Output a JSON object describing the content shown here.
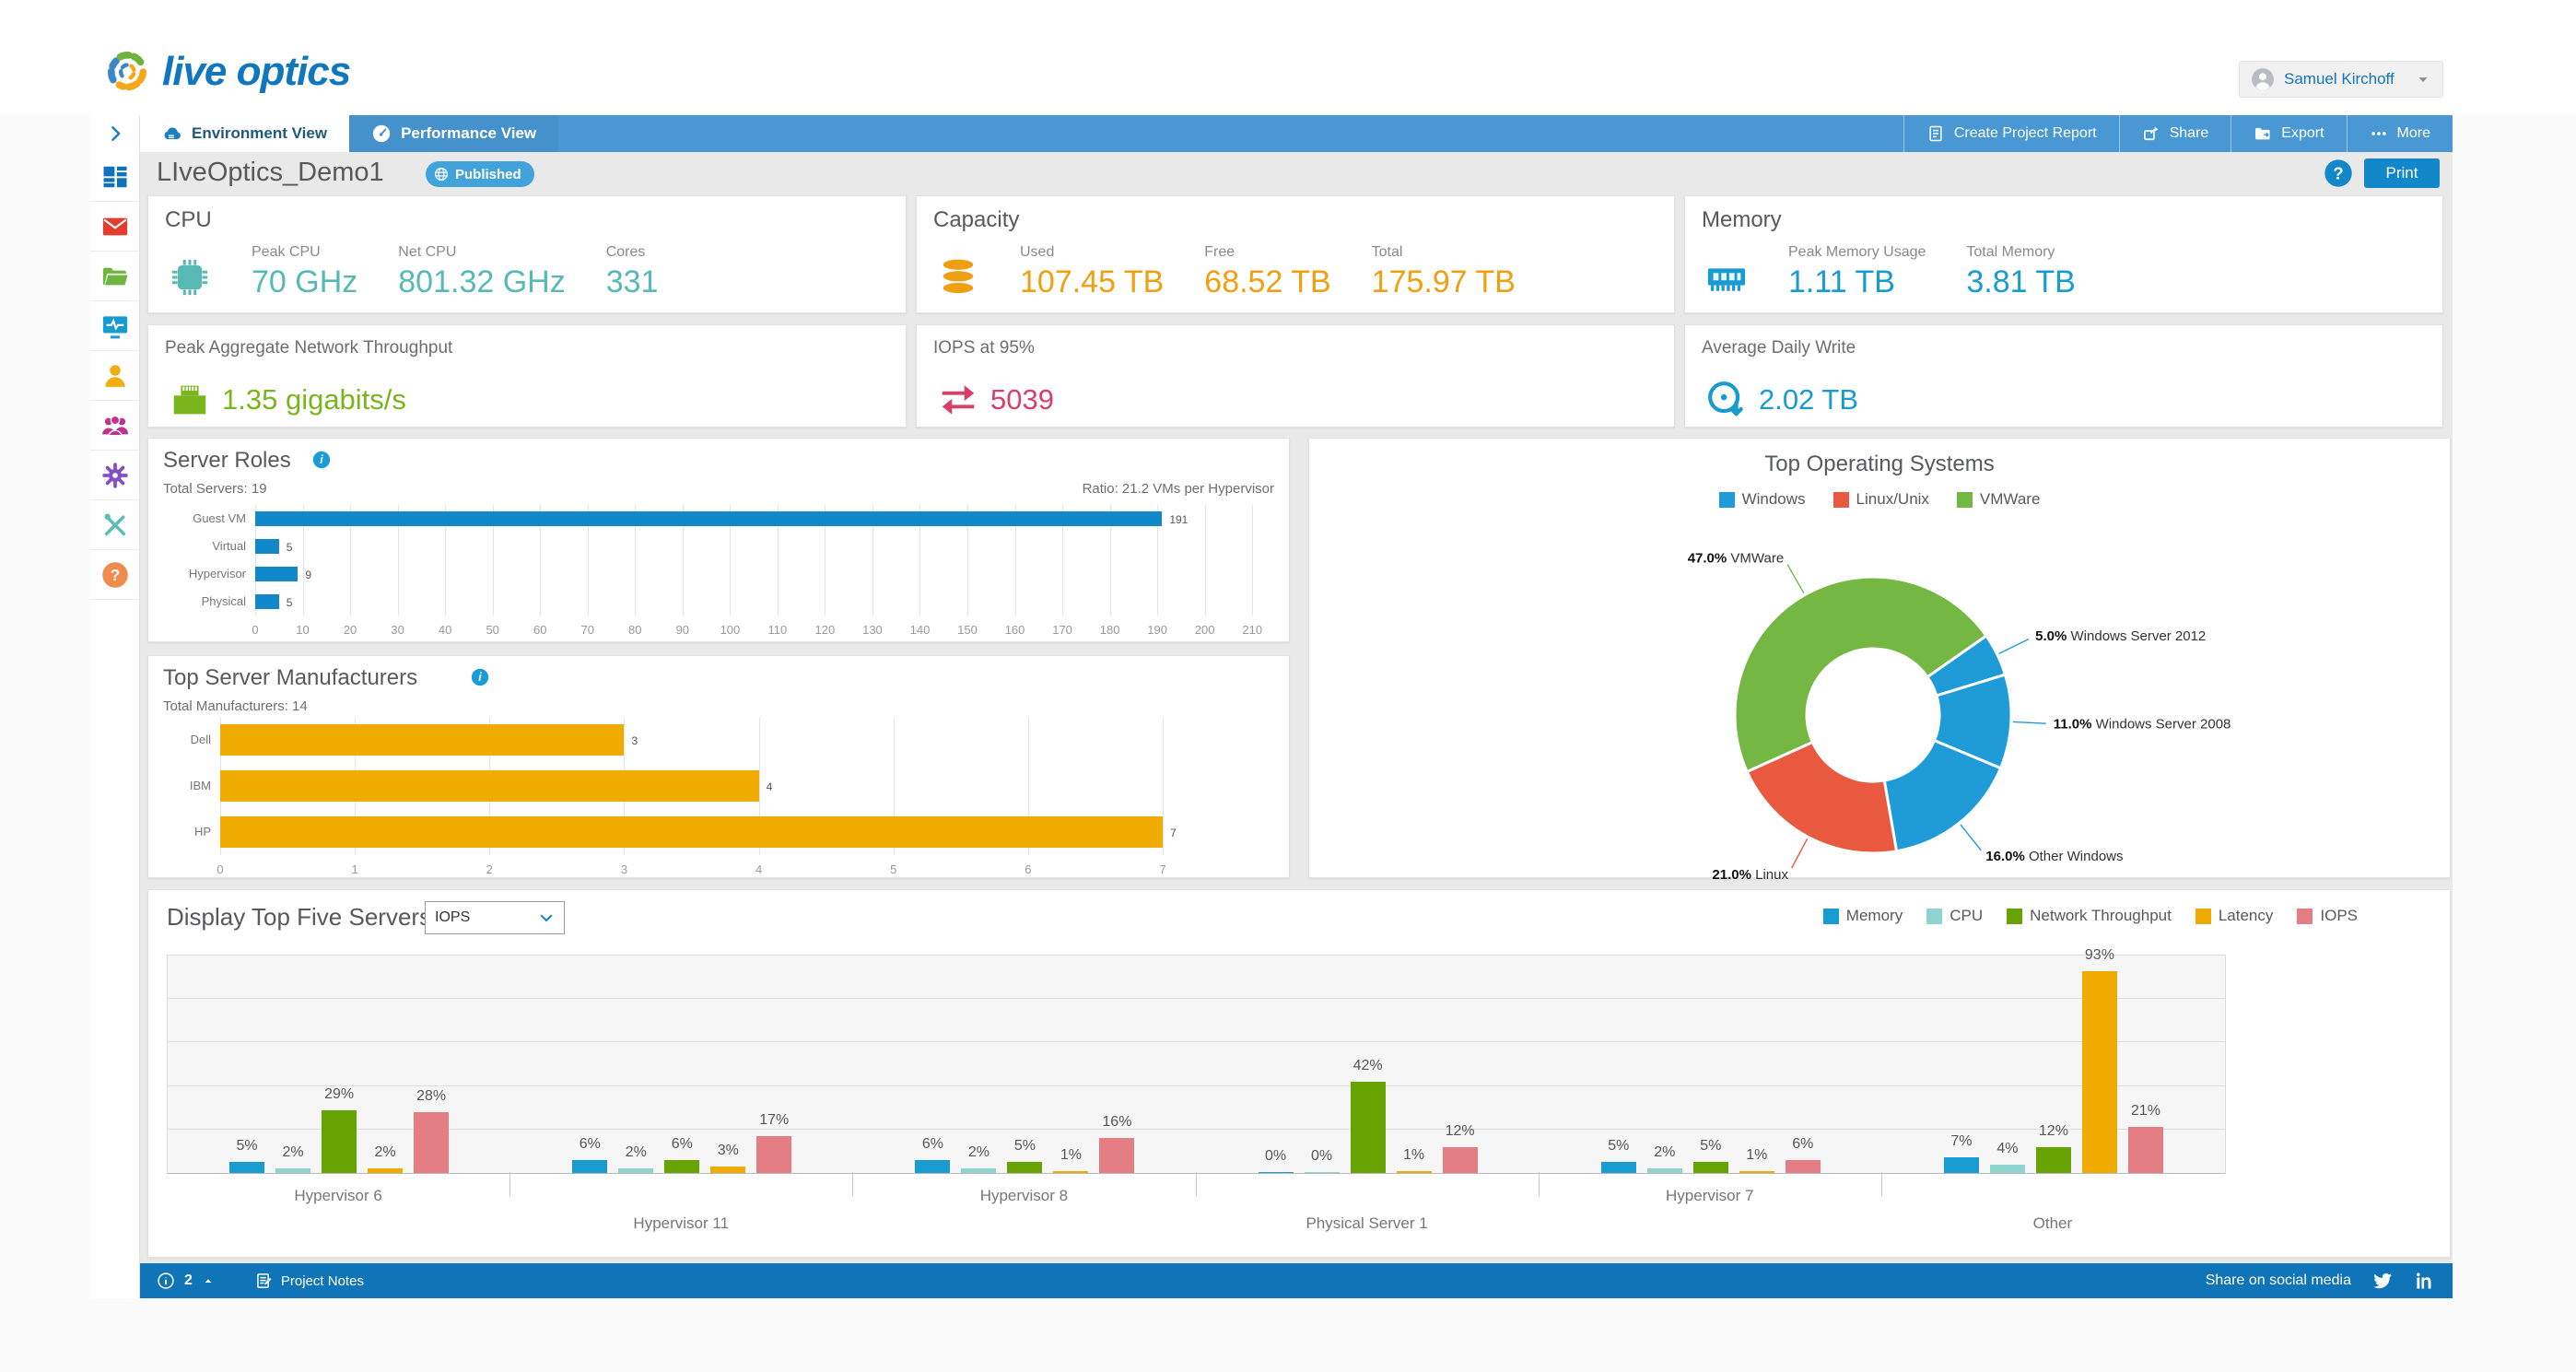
{
  "header": {
    "logo_text": "live optics",
    "user": {
      "name": "Samuel Kirchoff"
    }
  },
  "navbar": {
    "tabs": [
      {
        "label": "Environment View",
        "icon": "cloud-icon",
        "active": true
      },
      {
        "label": "Performance View",
        "icon": "gauge-icon",
        "active": false
      }
    ],
    "actions": [
      {
        "label": "Create Project Report",
        "icon": "report-icon"
      },
      {
        "label": "Share",
        "icon": "share-icon"
      },
      {
        "label": "Export",
        "icon": "export-icon"
      },
      {
        "label": "More",
        "icon": "more-icon"
      }
    ]
  },
  "titlebar": {
    "project_name": "LIveOptics_Demo1",
    "status_badge": "Published",
    "print_label": "Print"
  },
  "sidebar": {
    "items": [
      {
        "icon": "dashboard-icon",
        "color": "#1073ba"
      },
      {
        "icon": "mail-icon",
        "color": "#e23d2e"
      },
      {
        "icon": "folder-icon",
        "color": "#6fb53f"
      },
      {
        "icon": "monitor-pulse-icon",
        "color": "#189bd0"
      },
      {
        "icon": "user-icon",
        "color": "#efaf13"
      },
      {
        "icon": "users-icon",
        "color": "#c0328c"
      },
      {
        "icon": "gear-icon",
        "color": "#8250c4"
      },
      {
        "icon": "tools-icon",
        "color": "#5bbcb8"
      },
      {
        "icon": "help-icon",
        "color": "#f08b4b"
      }
    ]
  },
  "summary_cards": {
    "cpu": {
      "title": "CPU",
      "icon": "cpu-chip-icon",
      "accent": "#56b9b4",
      "metrics": [
        {
          "label": "Peak CPU",
          "value": "70 GHz"
        },
        {
          "label": "Net CPU",
          "value": "801.32 GHz"
        },
        {
          "label": "Cores",
          "value": "331"
        }
      ]
    },
    "capacity": {
      "title": "Capacity",
      "icon": "database-icon",
      "accent": "#efa012",
      "metrics": [
        {
          "label": "Used",
          "value": "107.45 TB"
        },
        {
          "label": "Free",
          "value": "68.52 TB"
        },
        {
          "label": "Total",
          "value": "175.97 TB"
        }
      ]
    },
    "memory": {
      "title": "Memory",
      "icon": "ram-icon",
      "accent": "#189bd0",
      "metrics": [
        {
          "label": "Peak Memory Usage",
          "value": "1.11 TB"
        },
        {
          "label": "Total Memory",
          "value": "3.81 TB"
        }
      ]
    },
    "network": {
      "title": "Peak Aggregate Network Throughput",
      "icon": "ethernet-icon",
      "accent": "#7ab51d",
      "value": "1.35 gigabits/s"
    },
    "iops": {
      "title": "IOPS at 95%",
      "icon": "arrows-lr-icon",
      "accent": "#d84068",
      "value": "5039"
    },
    "daily_write": {
      "title": "Average Daily Write",
      "icon": "disk-write-icon",
      "accent": "#189bd0",
      "value": "2.02 TB"
    }
  },
  "footer": {
    "info_count": "2",
    "notes_label": "Project Notes",
    "share_label": "Share on social media"
  },
  "chart_data": [
    {
      "id": "server_roles",
      "type": "bar",
      "orientation": "horizontal",
      "title": "Server Roles",
      "subtitle_left": "Total Servers: 19",
      "subtitle_right": "Ratio: 21.2 VMs per Hypervisor",
      "categories": [
        "Guest VM",
        "Virtual",
        "Hypervisor",
        "Physical"
      ],
      "values": [
        191,
        5,
        9,
        5
      ],
      "bar_color": "#1088c9",
      "xlim": [
        0,
        215
      ],
      "tick_step": 10,
      "tick_max": 210,
      "grid": true
    },
    {
      "id": "top_manufacturers",
      "type": "bar",
      "orientation": "horizontal",
      "title": "Top Server Manufacturers",
      "subtitle_left": "Total Manufacturers: 14",
      "categories": [
        "Dell",
        "IBM",
        "HP"
      ],
      "values": [
        3,
        4,
        7
      ],
      "bar_color": "#f0ab00",
      "xlim": [
        0,
        7.8
      ],
      "tick_step": 1,
      "tick_max": 7,
      "grid": true
    },
    {
      "id": "top_operating_systems",
      "type": "pie",
      "donut": true,
      "title": "Top Operating Systems",
      "legend_position": "top",
      "start_angle_deg": 55,
      "legend": [
        {
          "label": "Windows",
          "color": "#1f9cd8"
        },
        {
          "label": "Linux/Unix",
          "color": "#e8593f"
        },
        {
          "label": "VMWare",
          "color": "#74b843"
        }
      ],
      "slices": [
        {
          "label": "Windows Server 2012",
          "pct": 5.0,
          "color": "#1f9cd8"
        },
        {
          "label": "Windows Server 2008",
          "pct": 11.0,
          "color": "#1f9cd8"
        },
        {
          "label": "Other Windows",
          "pct": 16.0,
          "color": "#1f9cd8"
        },
        {
          "label": "Linux",
          "pct": 21.0,
          "color": "#e8593f"
        },
        {
          "label": "VMWare",
          "pct": 47.0,
          "color": "#74b843"
        }
      ]
    },
    {
      "id": "top_five_servers",
      "type": "bar",
      "grouped": true,
      "control_label": "Display Top Five Servers By",
      "selected_option": "IOPS",
      "legend_position": "top-right",
      "ylim": [
        0,
        100
      ],
      "grid_step_pct": 20,
      "value_suffix": "%",
      "categories": [
        "Hypervisor 6",
        "Hypervisor 11",
        "Hypervisor 8",
        "Physical Server 1",
        "Hypervisor 7",
        "Other"
      ],
      "series": [
        {
          "name": "Memory",
          "color": "#189bd0",
          "values": [
            5,
            6,
            6,
            0,
            5,
            7
          ]
        },
        {
          "name": "CPU",
          "color": "#8fd4cf",
          "values": [
            2,
            2,
            2,
            0,
            2,
            4
          ]
        },
        {
          "name": "Network Throughput",
          "color": "#67a401",
          "values": [
            29,
            6,
            5,
            42,
            5,
            12
          ]
        },
        {
          "name": "Latency",
          "color": "#f0ab00",
          "values": [
            2,
            3,
            1,
            1,
            1,
            93
          ]
        },
        {
          "name": "IOPS",
          "color": "#e57e84",
          "values": [
            28,
            17,
            16,
            12,
            6,
            21
          ]
        }
      ]
    }
  ]
}
